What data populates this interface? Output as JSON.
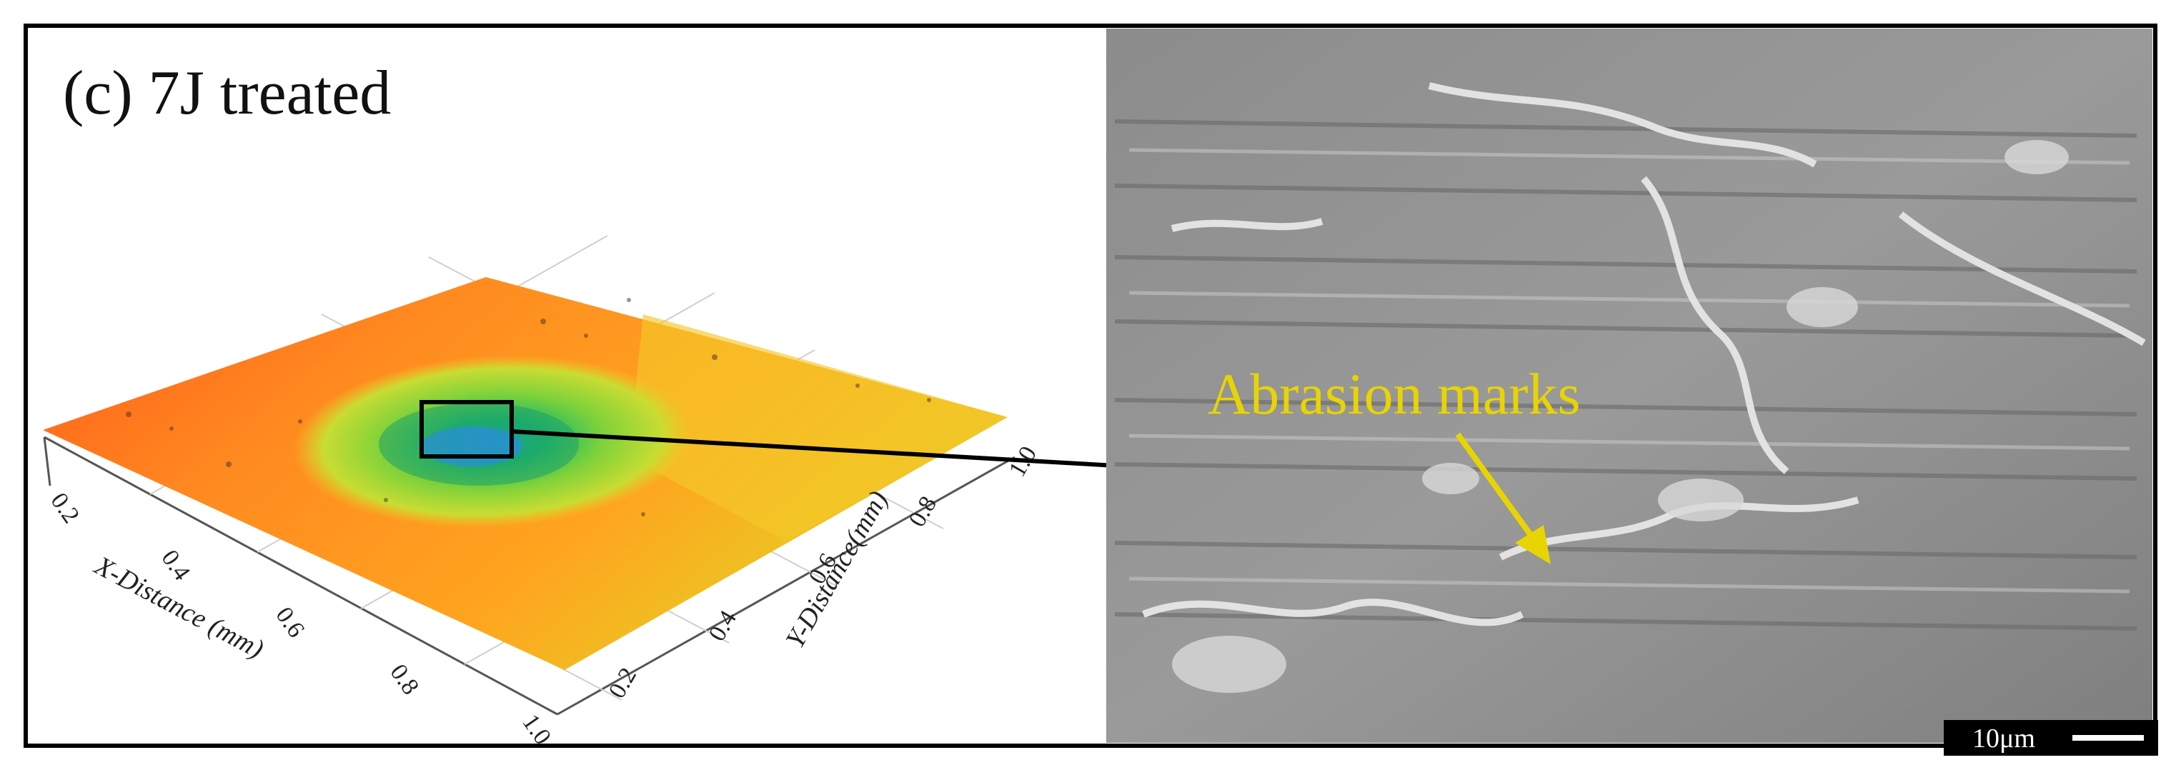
{
  "panel_label": "(c) 7J treated",
  "left_plot": {
    "x_axis_label": "X-Distance (mm)",
    "y_axis_label": "Y-Distance(mm)",
    "x_ticks": [
      "0.2",
      "0.4",
      "0.6",
      "0.8",
      "1.0"
    ],
    "y_ticks": [
      "0.2",
      "0.4",
      "0.6",
      "0.8",
      "1.0"
    ]
  },
  "right_image": {
    "annotation": "Abrasion marks",
    "annotation_color": "#e8d400",
    "scale_bar_label": "10μm"
  }
}
